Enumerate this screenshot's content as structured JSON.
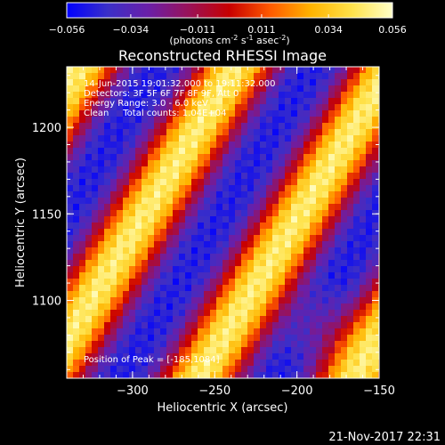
{
  "chart_data": {
    "type": "heatmap",
    "title": "Reconstructed RHESSI Image",
    "colorbar": {
      "ticks": [
        "-0.056",
        "-0.034",
        "-0.011",
        "0.011",
        "0.034",
        "0.056"
      ],
      "range": [
        -0.056,
        0.056
      ],
      "units_main": "(photons cm",
      "units_sup1": "-2",
      "units_s": " s",
      "units_sup2": "-1",
      "units_asec": " asec",
      "units_sup3": "-2",
      "units_close": ")",
      "colormap": [
        "#0000ff",
        "#3a2fc8",
        "#6a1fa8",
        "#9a1258",
        "#c80000",
        "#ff5a00",
        "#ffb400",
        "#ffe24a",
        "#ffffc8"
      ]
    },
    "xlabel": "Heliocentric X (arcsec)",
    "ylabel": "Heliocentric Y (arcsec)",
    "xlim": [
      -340,
      -150
    ],
    "ylim": [
      1055,
      1235
    ],
    "xticks": [
      -300,
      -250,
      -200,
      -150
    ],
    "xtick_labels": [
      "−300",
      "−250",
      "−200",
      "−150"
    ],
    "yticks": [
      1100,
      1150,
      1200
    ],
    "ytick_labels": [
      "1100",
      "1150",
      "1200"
    ],
    "annotations": [
      "14-Jun-2015 19:01:32.000 to 19:11:32.000",
      "Detectors: 3F 5F 6F 7F 8F 9F, Att 0",
      "Energy Range: 3.0 - 6.0 keV",
      "Clean     Total counts: 1.04E+04"
    ],
    "peak_label": "Position of Peak = [-185,1084]",
    "peak": [
      -185,
      1084
    ]
  },
  "footer": {
    "date": "21-Nov-2017 22:31"
  }
}
